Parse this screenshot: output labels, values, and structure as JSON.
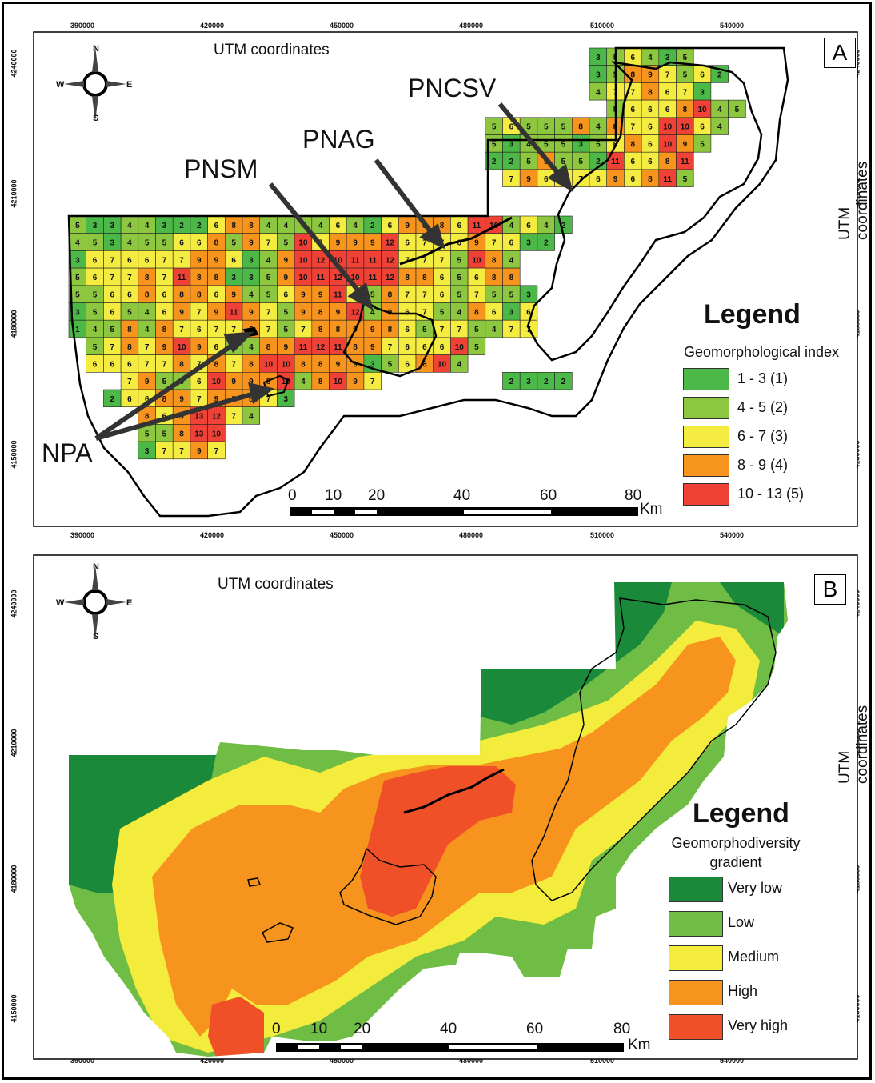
{
  "panel_a": {
    "letter": "A",
    "coord_title_top": "UTM coordinates",
    "coord_title_right": "UTM coordinates",
    "x_ticks": [
      "390000",
      "420000",
      "450000",
      "480000",
      "510000",
      "540000"
    ],
    "y_ticks": [
      "4240000",
      "4210000",
      "4180000",
      "4150000"
    ],
    "compass": {
      "n": "N",
      "s": "S",
      "e": "E",
      "w": "W"
    },
    "legend": {
      "title": "Legend",
      "subtitle": "Geomorphological index",
      "classes": [
        {
          "label": "1 - 3 (1)",
          "color": "#4cb848"
        },
        {
          "label": "4 - 5 (2)",
          "color": "#8dc63f"
        },
        {
          "label": "6 - 7 (3)",
          "color": "#f5ec42"
        },
        {
          "label": "8 - 9 (4)",
          "color": "#f7941d"
        },
        {
          "label": "10 - 13 (5)",
          "color": "#ef4136"
        }
      ]
    },
    "callouts": {
      "pncsv": "PNCSV",
      "pnag": "PNAG",
      "pnsm": "PNSM",
      "npa": "NPA"
    },
    "scale": {
      "labels": [
        "0",
        "10",
        "20",
        "40",
        "60",
        "80"
      ],
      "unit": "Km"
    },
    "grid_rows": [
      {
        "row": 0,
        "start": 30,
        "vals": [
          3,
          5,
          6,
          4,
          3,
          5
        ]
      },
      {
        "row": 1,
        "start": 30,
        "vals": [
          3,
          5,
          8,
          9,
          7,
          5,
          6,
          2
        ]
      },
      {
        "row": 2,
        "start": 30,
        "vals": [
          4,
          7,
          7,
          8,
          6,
          7,
          3
        ]
      },
      {
        "row": 3,
        "start": 31,
        "vals": [
          5,
          6,
          6,
          6,
          8,
          10,
          4,
          5
        ]
      },
      {
        "row": 4,
        "start": 24,
        "vals": [
          5,
          6,
          5,
          5,
          5,
          8,
          4,
          8,
          7,
          6,
          10,
          10,
          6,
          4
        ]
      },
      {
        "row": 5,
        "start": 24,
        "vals": [
          5,
          3,
          4,
          5,
          5,
          3,
          5,
          6,
          8,
          6,
          10,
          9,
          5
        ]
      },
      {
        "row": 6,
        "start": 24,
        "vals": [
          2,
          2,
          5,
          9,
          5,
          5,
          2,
          11,
          6,
          6,
          8,
          11
        ]
      },
      {
        "row": 7,
        "start": 25,
        "vals": [
          7,
          9,
          6,
          7,
          7,
          6,
          9,
          6,
          8,
          11,
          5
        ]
      },
      {
        "row": 8,
        "start": 0,
        "vals": [
          5,
          3,
          3,
          4,
          4,
          3,
          2,
          2,
          6,
          8,
          8,
          4,
          4,
          4,
          4,
          6,
          4,
          2,
          6,
          9,
          8,
          8,
          6,
          11,
          10,
          4,
          6,
          4,
          2
        ]
      },
      {
        "row": 9,
        "start": 0,
        "vals": [
          4,
          5,
          3,
          4,
          5,
          5,
          6,
          6,
          8,
          5,
          9,
          7,
          5,
          10,
          7,
          9,
          9,
          9,
          12,
          6,
          7,
          7,
          6,
          9,
          7,
          6,
          3,
          2
        ]
      },
      {
        "row": 10,
        "start": 0,
        "vals": [
          3,
          6,
          7,
          6,
          6,
          7,
          7,
          9,
          9,
          6,
          3,
          4,
          9,
          10,
          12,
          10,
          11,
          11,
          12,
          7,
          7,
          7,
          5,
          10,
          8,
          4
        ]
      },
      {
        "row": 11,
        "start": 0,
        "vals": [
          5,
          6,
          7,
          7,
          8,
          7,
          11,
          8,
          8,
          3,
          3,
          5,
          9,
          10,
          11,
          12,
          10,
          11,
          12,
          8,
          8,
          6,
          5,
          6,
          8,
          8
        ]
      },
      {
        "row": 12,
        "start": 0,
        "vals": [
          5,
          5,
          6,
          6,
          8,
          6,
          8,
          8,
          6,
          9,
          4,
          5,
          6,
          9,
          9,
          11,
          6,
          5,
          8,
          7,
          7,
          6,
          5,
          7,
          5,
          5,
          3
        ]
      },
      {
        "row": 13,
        "start": 0,
        "vals": [
          3,
          5,
          6,
          5,
          4,
          6,
          9,
          7,
          9,
          11,
          9,
          7,
          5,
          9,
          8,
          9,
          12,
          4,
          9,
          6,
          7,
          5,
          4,
          8,
          6,
          3,
          6
        ]
      },
      {
        "row": 14,
        "start": 0,
        "vals": [
          1,
          4,
          5,
          8,
          4,
          8,
          7,
          6,
          7,
          7,
          8,
          7,
          5,
          7,
          8,
          8,
          9,
          9,
          8,
          6,
          5,
          7,
          7,
          5,
          4,
          7,
          7
        ]
      },
      {
        "row": 15,
        "start": 1,
        "vals": [
          5,
          7,
          8,
          7,
          9,
          10,
          9,
          6,
          5,
          4,
          8,
          9,
          11,
          12,
          11,
          8,
          9,
          7,
          6,
          6,
          6,
          10,
          5
        ]
      },
      {
        "row": 16,
        "start": 1,
        "vals": [
          6,
          6,
          6,
          7,
          7,
          8,
          7,
          8,
          7,
          8,
          10,
          10,
          8,
          8,
          9,
          9,
          3,
          5,
          6,
          8,
          10,
          4
        ]
      },
      {
        "row": 17,
        "start": 3,
        "vals": [
          7,
          9,
          5,
          5,
          6,
          10,
          9,
          9,
          8,
          10,
          4,
          8,
          10,
          9,
          7
        ]
      },
      {
        "row": 18,
        "start": 2,
        "vals": [
          2,
          6,
          6,
          8,
          9,
          7,
          9,
          8,
          8,
          7,
          3
        ]
      },
      {
        "row": 19,
        "start": 4,
        "vals": [
          8,
          6,
          9,
          13,
          12,
          7,
          4
        ]
      },
      {
        "row": 20,
        "start": 4,
        "vals": [
          5,
          5,
          8,
          13,
          10
        ]
      },
      {
        "row": 21,
        "start": 4,
        "vals": [
          3,
          7,
          7,
          9,
          7
        ]
      },
      {
        "row": 17,
        "start": 25,
        "vals": [
          2,
          3,
          2,
          2
        ]
      }
    ]
  },
  "panel_b": {
    "letter": "B",
    "coord_title_top": "UTM coordinates",
    "coord_title_right": "UTM coordinates",
    "x_ticks": [
      "390000",
      "420000",
      "450000",
      "480000",
      "510000",
      "540000"
    ],
    "y_ticks": [
      "4240000",
      "4210000",
      "4180000",
      "4150000"
    ],
    "compass": {
      "n": "N",
      "s": "S",
      "e": "E",
      "w": "W"
    },
    "legend": {
      "title": "Legend",
      "subtitle_line1": "Geomorphodiversity",
      "subtitle_line2": "gradient",
      "classes": [
        {
          "label": "Very low",
          "color": "#1a8a3a"
        },
        {
          "label": "Low",
          "color": "#6fbd45"
        },
        {
          "label": "Medium",
          "color": "#f4ec3c"
        },
        {
          "label": "High",
          "color": "#f7941d"
        },
        {
          "label": "Very high",
          "color": "#ef5028"
        }
      ]
    },
    "scale": {
      "labels": [
        "0",
        "10",
        "20",
        "40",
        "60",
        "80"
      ],
      "unit": "Km"
    }
  }
}
